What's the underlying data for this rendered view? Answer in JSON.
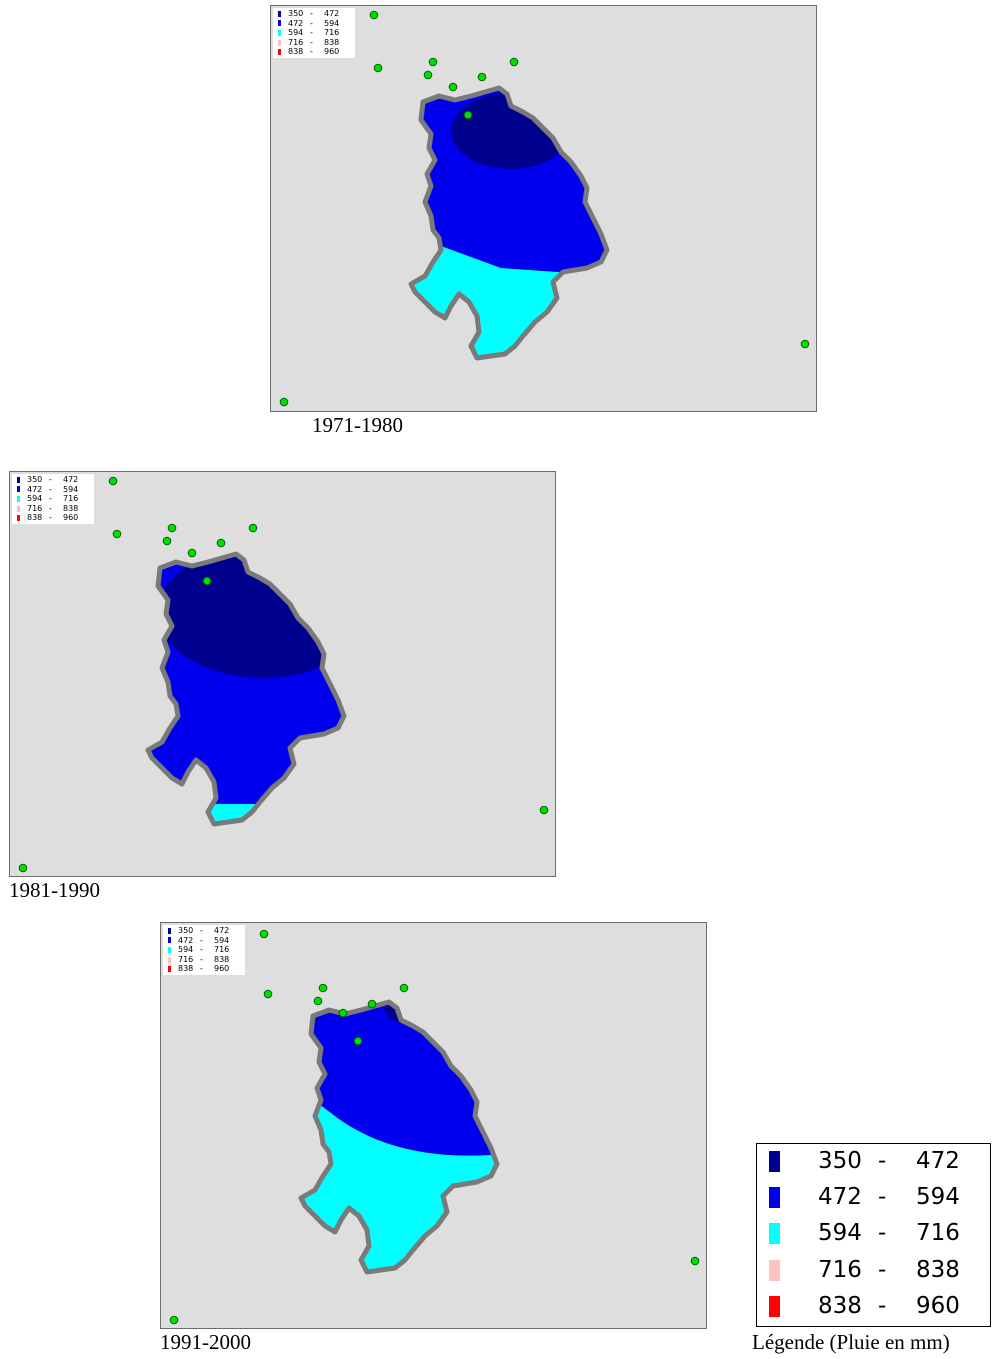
{
  "legend_entries": [
    {
      "low": "350",
      "high": "472",
      "color": "#00008f"
    },
    {
      "low": "472",
      "high": "594",
      "color": "#0000ee"
    },
    {
      "low": "594",
      "high": "716",
      "color": "#00ffff"
    },
    {
      "low": "716",
      "high": "838",
      "color": "#ffc2c2"
    },
    {
      "low": "838",
      "high": "960",
      "color": "#ff0000"
    }
  ],
  "dash": "-",
  "legend_title": "Légende (Pluie en mm)",
  "maps": [
    {
      "caption": "1971-1980"
    },
    {
      "caption": "1981-1990"
    },
    {
      "caption": "1991-2000"
    }
  ],
  "colors": {
    "background": "#dedede",
    "border": "#7a7a7a",
    "station": "#00e000"
  }
}
